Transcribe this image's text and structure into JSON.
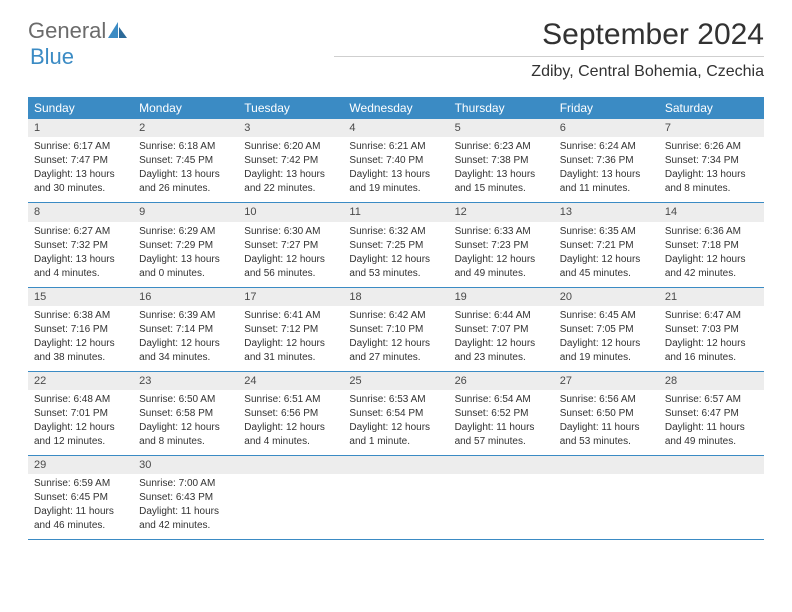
{
  "logo": {
    "word1": "General",
    "word2": "Blue"
  },
  "title": "September 2024",
  "location": "Zdiby, Central Bohemia, Czechia",
  "header_color": "#3b8bc4",
  "daynum_bg": "#ededed",
  "dayNames": [
    "Sunday",
    "Monday",
    "Tuesday",
    "Wednesday",
    "Thursday",
    "Friday",
    "Saturday"
  ],
  "weeks": [
    [
      {
        "n": "1",
        "sr": "Sunrise: 6:17 AM",
        "ss": "Sunset: 7:47 PM",
        "d1": "Daylight: 13 hours",
        "d2": "and 30 minutes."
      },
      {
        "n": "2",
        "sr": "Sunrise: 6:18 AM",
        "ss": "Sunset: 7:45 PM",
        "d1": "Daylight: 13 hours",
        "d2": "and 26 minutes."
      },
      {
        "n": "3",
        "sr": "Sunrise: 6:20 AM",
        "ss": "Sunset: 7:42 PM",
        "d1": "Daylight: 13 hours",
        "d2": "and 22 minutes."
      },
      {
        "n": "4",
        "sr": "Sunrise: 6:21 AM",
        "ss": "Sunset: 7:40 PM",
        "d1": "Daylight: 13 hours",
        "d2": "and 19 minutes."
      },
      {
        "n": "5",
        "sr": "Sunrise: 6:23 AM",
        "ss": "Sunset: 7:38 PM",
        "d1": "Daylight: 13 hours",
        "d2": "and 15 minutes."
      },
      {
        "n": "6",
        "sr": "Sunrise: 6:24 AM",
        "ss": "Sunset: 7:36 PM",
        "d1": "Daylight: 13 hours",
        "d2": "and 11 minutes."
      },
      {
        "n": "7",
        "sr": "Sunrise: 6:26 AM",
        "ss": "Sunset: 7:34 PM",
        "d1": "Daylight: 13 hours",
        "d2": "and 8 minutes."
      }
    ],
    [
      {
        "n": "8",
        "sr": "Sunrise: 6:27 AM",
        "ss": "Sunset: 7:32 PM",
        "d1": "Daylight: 13 hours",
        "d2": "and 4 minutes."
      },
      {
        "n": "9",
        "sr": "Sunrise: 6:29 AM",
        "ss": "Sunset: 7:29 PM",
        "d1": "Daylight: 13 hours",
        "d2": "and 0 minutes."
      },
      {
        "n": "10",
        "sr": "Sunrise: 6:30 AM",
        "ss": "Sunset: 7:27 PM",
        "d1": "Daylight: 12 hours",
        "d2": "and 56 minutes."
      },
      {
        "n": "11",
        "sr": "Sunrise: 6:32 AM",
        "ss": "Sunset: 7:25 PM",
        "d1": "Daylight: 12 hours",
        "d2": "and 53 minutes."
      },
      {
        "n": "12",
        "sr": "Sunrise: 6:33 AM",
        "ss": "Sunset: 7:23 PM",
        "d1": "Daylight: 12 hours",
        "d2": "and 49 minutes."
      },
      {
        "n": "13",
        "sr": "Sunrise: 6:35 AM",
        "ss": "Sunset: 7:21 PM",
        "d1": "Daylight: 12 hours",
        "d2": "and 45 minutes."
      },
      {
        "n": "14",
        "sr": "Sunrise: 6:36 AM",
        "ss": "Sunset: 7:18 PM",
        "d1": "Daylight: 12 hours",
        "d2": "and 42 minutes."
      }
    ],
    [
      {
        "n": "15",
        "sr": "Sunrise: 6:38 AM",
        "ss": "Sunset: 7:16 PM",
        "d1": "Daylight: 12 hours",
        "d2": "and 38 minutes."
      },
      {
        "n": "16",
        "sr": "Sunrise: 6:39 AM",
        "ss": "Sunset: 7:14 PM",
        "d1": "Daylight: 12 hours",
        "d2": "and 34 minutes."
      },
      {
        "n": "17",
        "sr": "Sunrise: 6:41 AM",
        "ss": "Sunset: 7:12 PM",
        "d1": "Daylight: 12 hours",
        "d2": "and 31 minutes."
      },
      {
        "n": "18",
        "sr": "Sunrise: 6:42 AM",
        "ss": "Sunset: 7:10 PM",
        "d1": "Daylight: 12 hours",
        "d2": "and 27 minutes."
      },
      {
        "n": "19",
        "sr": "Sunrise: 6:44 AM",
        "ss": "Sunset: 7:07 PM",
        "d1": "Daylight: 12 hours",
        "d2": "and 23 minutes."
      },
      {
        "n": "20",
        "sr": "Sunrise: 6:45 AM",
        "ss": "Sunset: 7:05 PM",
        "d1": "Daylight: 12 hours",
        "d2": "and 19 minutes."
      },
      {
        "n": "21",
        "sr": "Sunrise: 6:47 AM",
        "ss": "Sunset: 7:03 PM",
        "d1": "Daylight: 12 hours",
        "d2": "and 16 minutes."
      }
    ],
    [
      {
        "n": "22",
        "sr": "Sunrise: 6:48 AM",
        "ss": "Sunset: 7:01 PM",
        "d1": "Daylight: 12 hours",
        "d2": "and 12 minutes."
      },
      {
        "n": "23",
        "sr": "Sunrise: 6:50 AM",
        "ss": "Sunset: 6:58 PM",
        "d1": "Daylight: 12 hours",
        "d2": "and 8 minutes."
      },
      {
        "n": "24",
        "sr": "Sunrise: 6:51 AM",
        "ss": "Sunset: 6:56 PM",
        "d1": "Daylight: 12 hours",
        "d2": "and 4 minutes."
      },
      {
        "n": "25",
        "sr": "Sunrise: 6:53 AM",
        "ss": "Sunset: 6:54 PM",
        "d1": "Daylight: 12 hours",
        "d2": "and 1 minute."
      },
      {
        "n": "26",
        "sr": "Sunrise: 6:54 AM",
        "ss": "Sunset: 6:52 PM",
        "d1": "Daylight: 11 hours",
        "d2": "and 57 minutes."
      },
      {
        "n": "27",
        "sr": "Sunrise: 6:56 AM",
        "ss": "Sunset: 6:50 PM",
        "d1": "Daylight: 11 hours",
        "d2": "and 53 minutes."
      },
      {
        "n": "28",
        "sr": "Sunrise: 6:57 AM",
        "ss": "Sunset: 6:47 PM",
        "d1": "Daylight: 11 hours",
        "d2": "and 49 minutes."
      }
    ],
    [
      {
        "n": "29",
        "sr": "Sunrise: 6:59 AM",
        "ss": "Sunset: 6:45 PM",
        "d1": "Daylight: 11 hours",
        "d2": "and 46 minutes."
      },
      {
        "n": "30",
        "sr": "Sunrise: 7:00 AM",
        "ss": "Sunset: 6:43 PM",
        "d1": "Daylight: 11 hours",
        "d2": "and 42 minutes."
      },
      null,
      null,
      null,
      null,
      null
    ]
  ]
}
